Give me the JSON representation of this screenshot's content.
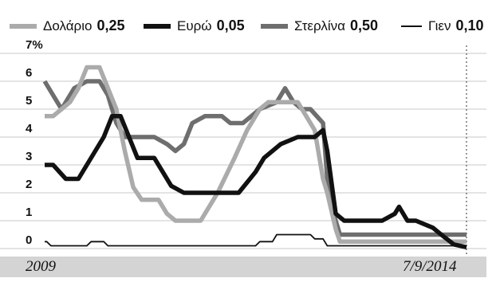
{
  "chart_data": {
    "type": "line",
    "x_start_label": "2009",
    "x_end_label": "7/9/2014",
    "y_tick_labels": [
      "7%",
      "6",
      "5",
      "4",
      "3",
      "2",
      "1",
      "0"
    ],
    "ylim": [
      0,
      7
    ],
    "grid": "horizontal",
    "legend_position": "top",
    "series": [
      {
        "name": "Δολάριο",
        "current_value": "0,25",
        "color": "#ababab",
        "stroke_width": 5.5,
        "x": [
          0,
          0.02,
          0.06,
          0.08,
          0.1,
          0.13,
          0.17,
          0.19,
          0.21,
          0.23,
          0.27,
          0.29,
          0.31,
          0.33,
          0.37,
          0.41,
          0.45,
          0.48,
          0.51,
          0.53,
          0.55,
          0.57,
          0.6,
          0.64,
          0.66,
          0.67,
          0.69,
          0.7,
          0.71,
          0.76,
          0.82,
          0.88,
          0.94,
          1.0
        ],
        "values": [
          4.75,
          4.75,
          5.25,
          5.75,
          6.5,
          6.5,
          5.0,
          3.5,
          2.2,
          1.75,
          1.75,
          1.25,
          1.0,
          1.0,
          1.0,
          2.0,
          3.25,
          4.25,
          5.0,
          5.25,
          5.25,
          5.25,
          5.25,
          4.25,
          2.5,
          2.0,
          0.7,
          0.25,
          0.25,
          0.25,
          0.25,
          0.25,
          0.25,
          0.25
        ]
      },
      {
        "name": "Ευρώ",
        "current_value": "0,05",
        "color": "#111111",
        "stroke_width": 5.5,
        "x": [
          0,
          0.02,
          0.05,
          0.08,
          0.1,
          0.12,
          0.14,
          0.16,
          0.18,
          0.2,
          0.22,
          0.24,
          0.26,
          0.3,
          0.33,
          0.38,
          0.42,
          0.46,
          0.5,
          0.52,
          0.56,
          0.6,
          0.64,
          0.66,
          0.67,
          0.69,
          0.71,
          0.76,
          0.8,
          0.83,
          0.84,
          0.86,
          0.88,
          0.92,
          0.94,
          0.97,
          1.0
        ],
        "values": [
          3.0,
          3.0,
          2.5,
          2.5,
          3.0,
          3.5,
          4.0,
          4.75,
          4.75,
          4.0,
          3.25,
          3.25,
          3.25,
          2.25,
          2.0,
          2.0,
          2.0,
          2.0,
          2.75,
          3.25,
          3.75,
          4.0,
          4.0,
          4.25,
          3.5,
          1.25,
          1.0,
          1.0,
          1.0,
          1.25,
          1.5,
          1.0,
          1.0,
          0.75,
          0.5,
          0.15,
          0.05
        ]
      },
      {
        "name": "Στερλίνα",
        "current_value": "0,50",
        "color": "#6e6e6e",
        "stroke_width": 5.5,
        "x": [
          0,
          0.02,
          0.04,
          0.07,
          0.1,
          0.13,
          0.15,
          0.17,
          0.19,
          0.22,
          0.26,
          0.29,
          0.31,
          0.33,
          0.35,
          0.38,
          0.42,
          0.44,
          0.47,
          0.49,
          0.51,
          0.55,
          0.57,
          0.59,
          0.61,
          0.63,
          0.66,
          0.67,
          0.68,
          0.69,
          0.7,
          0.72,
          0.8,
          0.9,
          1.0
        ],
        "values": [
          6.0,
          5.5,
          5.0,
          5.75,
          6.0,
          6.0,
          5.5,
          4.5,
          4.0,
          4.0,
          4.0,
          3.75,
          3.5,
          3.75,
          4.5,
          4.75,
          4.75,
          4.5,
          4.5,
          4.75,
          5.0,
          5.25,
          5.75,
          5.25,
          5.0,
          5.0,
          4.5,
          2.5,
          1.5,
          1.0,
          0.5,
          0.5,
          0.5,
          0.5,
          0.5
        ]
      },
      {
        "name": "Γιεν",
        "current_value": "0,10",
        "color": "#111111",
        "stroke_width": 1.8,
        "x": [
          0,
          0.005,
          0.015,
          0.1,
          0.11,
          0.14,
          0.15,
          0.5,
          0.51,
          0.54,
          0.55,
          0.63,
          0.64,
          0.66,
          0.67,
          1.0
        ],
        "values": [
          0.25,
          0.25,
          0.1,
          0.1,
          0.25,
          0.25,
          0.1,
          0.1,
          0.25,
          0.25,
          0.5,
          0.5,
          0.35,
          0.35,
          0.1,
          0.1
        ]
      }
    ]
  }
}
